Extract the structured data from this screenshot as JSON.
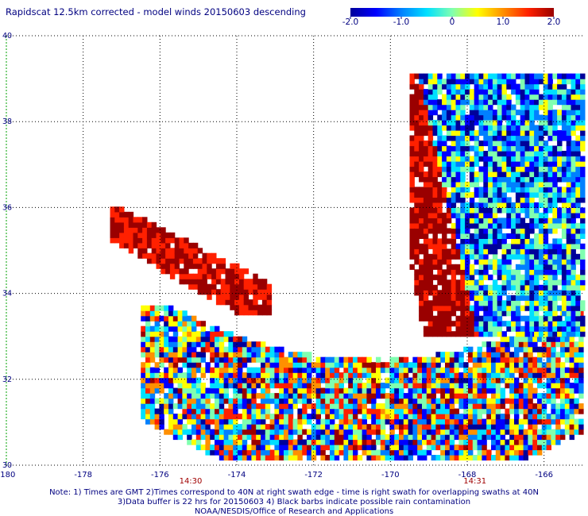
{
  "title": "Rapidscat 12.5km corrected - model winds 20150603 descending",
  "colorbar": {
    "tick_labels": [
      "-2.0",
      "-1.0",
      "0",
      "1.0",
      "2.0"
    ],
    "tick_values": [
      -2.0,
      -1.0,
      0,
      1.0,
      2.0
    ],
    "range": [
      -2.0,
      2.0
    ],
    "colors": [
      "#00009a",
      "#0000ff",
      "#0080ff",
      "#00e0ff",
      "#80ffb0",
      "#ffff00",
      "#ff9000",
      "#ff2000",
      "#9a0000"
    ]
  },
  "chart_data": {
    "type": "heatmap",
    "xlim": [
      -180,
      -165
    ],
    "ylim": [
      30,
      40
    ],
    "x_ticks": [
      -180,
      -178,
      -176,
      -174,
      -172,
      -170,
      -168,
      -166
    ],
    "x_tick_labels": [
      "-180",
      "-178",
      "-176",
      "-174",
      "-172",
      "-170",
      "-168",
      "-166"
    ],
    "y_ticks": [
      30,
      32,
      34,
      36,
      38,
      40
    ],
    "y_tick_labels": [
      "30",
      "32",
      "34",
      "36",
      "38",
      "40"
    ],
    "grid": true,
    "time_labels": [
      {
        "text": "14:30",
        "lon": -175.2
      },
      {
        "text": "14:31",
        "lon": -167.8
      }
    ],
    "swath_regions": [
      {
        "description": "left arm",
        "lon_range": [
          -177.3,
          -173.2
        ],
        "lat_range": [
          33.5,
          35.9
        ],
        "value_range": [
          1.0,
          2.0
        ]
      },
      {
        "description": "central swath",
        "lon_range": [
          -176.5,
          -165.0
        ],
        "lat_range": [
          30.0,
          33.7
        ],
        "value_range": [
          -2.0,
          2.0
        ]
      },
      {
        "description": "right arm",
        "lon_range": [
          -169.5,
          -165.0
        ],
        "lat_range": [
          33.0,
          39.0
        ],
        "value_range": [
          -2.0,
          2.0
        ]
      }
    ]
  },
  "notes": [
    "Note: 1) Times are GMT 2)Times correspond to 40N at right swath edge - time is right swath for overlapping swaths at 40N",
    "3)Data buffer is 22 hrs for 20150603 4) Black barbs indicate possible rain contamination",
    "NOAA/NESDIS/Office of Research and Applications"
  ]
}
